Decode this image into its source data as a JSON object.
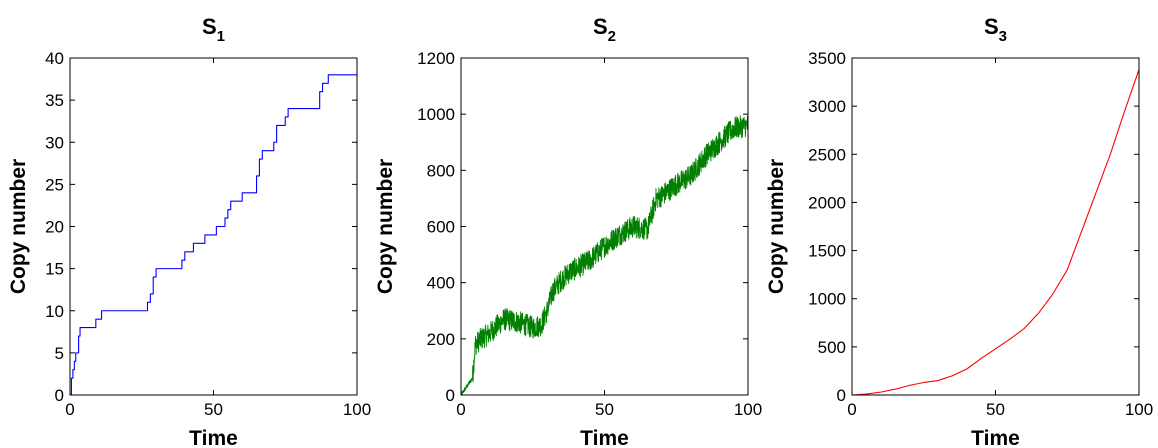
{
  "chart_data": [
    {
      "type": "line",
      "title": "S",
      "title_subscript": "1",
      "xlabel": "Time",
      "ylabel": "Copy number",
      "xlim": [
        0,
        100
      ],
      "ylim": [
        0,
        40
      ],
      "xticks": [
        0,
        50,
        100
      ],
      "yticks": [
        0,
        5,
        10,
        15,
        20,
        25,
        30,
        35,
        40
      ],
      "grid": false,
      "color": "#0000ff",
      "series": [
        {
          "style": "step",
          "x": [
            0,
            0.5,
            1,
            1.5,
            2,
            3,
            3.5,
            5,
            9,
            11,
            27,
            28,
            29,
            30,
            39,
            40,
            42,
            43,
            47,
            51,
            54,
            55,
            56,
            57,
            60,
            65,
            66,
            67,
            68,
            71,
            72,
            73,
            75,
            76,
            78,
            81,
            87,
            88,
            89,
            90,
            100
          ],
          "y": [
            0,
            2,
            3,
            4,
            5,
            7,
            8,
            8,
            9,
            10,
            11,
            12,
            14,
            15,
            16,
            17,
            17,
            18,
            19,
            20,
            21,
            22,
            23,
            23,
            24,
            26,
            28,
            29,
            29,
            30,
            32,
            32,
            33,
            34,
            34,
            34,
            36,
            37,
            37,
            38,
            38
          ]
        }
      ]
    },
    {
      "type": "line",
      "title": "S",
      "title_subscript": "2",
      "xlabel": "Time",
      "ylabel": "Copy number",
      "xlim": [
        0,
        100
      ],
      "ylim": [
        0,
        1200
      ],
      "xticks": [
        0,
        50,
        100
      ],
      "yticks": [
        0,
        200,
        400,
        600,
        800,
        1000,
        1200
      ],
      "grid": false,
      "color": "#007f00",
      "noise_amplitude": 40,
      "series": [
        {
          "style": "noisy",
          "x": [
            0,
            2,
            4,
            5,
            7,
            10,
            15,
            20,
            25,
            28,
            30,
            32,
            35,
            38,
            40,
            45,
            50,
            55,
            60,
            65,
            68,
            70,
            75,
            80,
            85,
            90,
            95,
            100
          ],
          "y": [
            0,
            30,
            60,
            180,
            200,
            220,
            270,
            260,
            240,
            250,
            300,
            370,
            410,
            440,
            450,
            480,
            530,
            570,
            600,
            590,
            700,
            710,
            750,
            780,
            850,
            900,
            950,
            960
          ]
        }
      ]
    },
    {
      "type": "line",
      "title": "S",
      "title_subscript": "3",
      "xlabel": "Time",
      "ylabel": "Copy number",
      "xlim": [
        0,
        100
      ],
      "ylim": [
        0,
        3500
      ],
      "xticks": [
        0,
        50,
        100
      ],
      "yticks": [
        0,
        500,
        1000,
        1500,
        2000,
        2500,
        3000,
        3500
      ],
      "grid": false,
      "color": "#ff0000",
      "series": [
        {
          "style": "line",
          "x": [
            0,
            5,
            10,
            15,
            20,
            25,
            30,
            35,
            40,
            45,
            50,
            55,
            60,
            65,
            70,
            75,
            80,
            85,
            90,
            95,
            100
          ],
          "y": [
            0,
            10,
            30,
            60,
            100,
            130,
            150,
            200,
            270,
            380,
            480,
            580,
            690,
            850,
            1050,
            1300,
            1700,
            2100,
            2500,
            2950,
            3380
          ]
        }
      ]
    }
  ]
}
